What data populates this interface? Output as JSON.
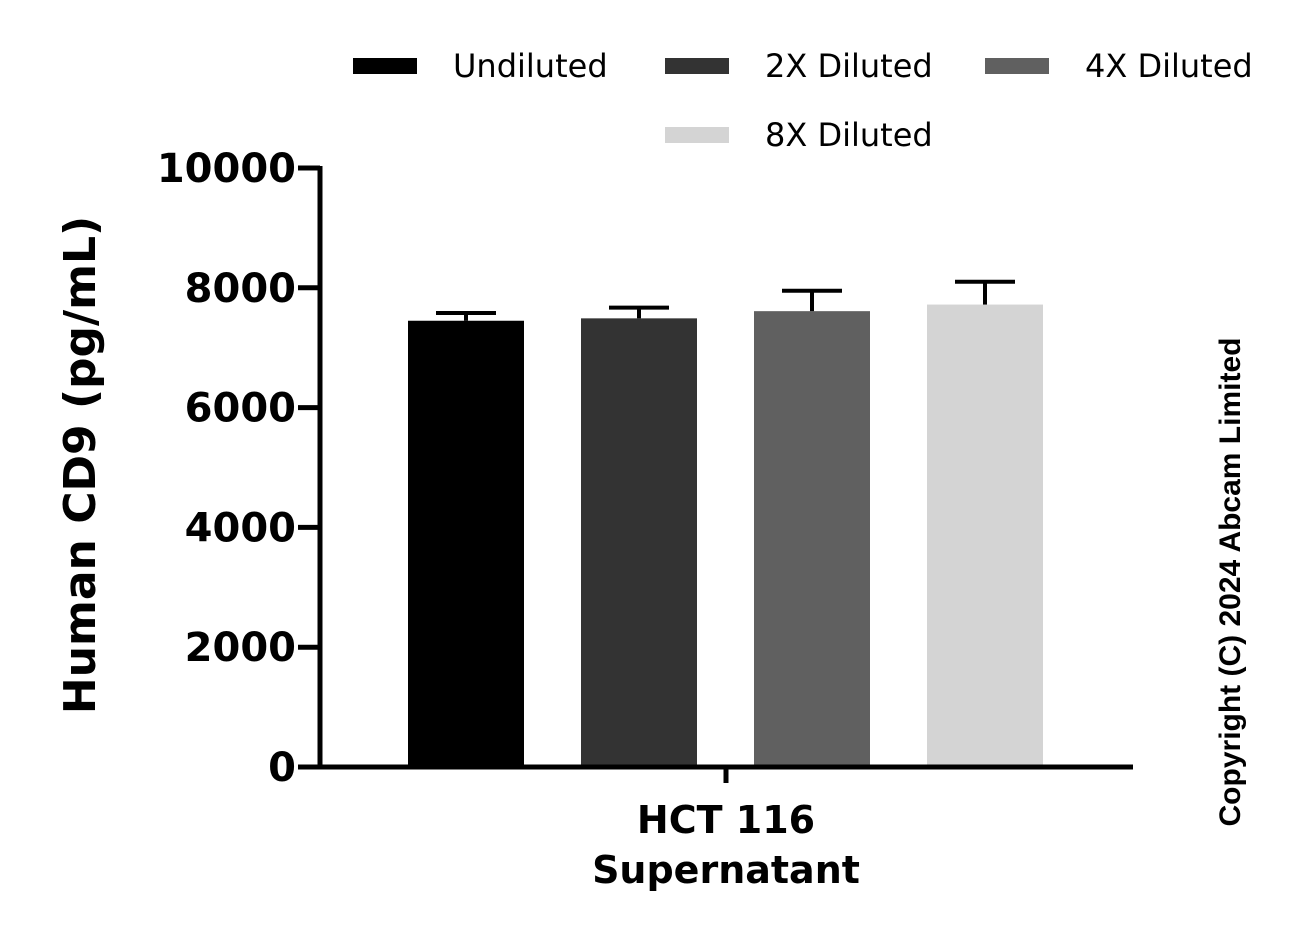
{
  "chart_data": {
    "type": "bar",
    "categories": [
      "HCT 116 Supernatant"
    ],
    "category_label_lines": [
      "HCT 116",
      "Supernatant"
    ],
    "ylabel": "Human CD9 (pg/mL)",
    "xlabel": "",
    "ylim": [
      0,
      10000
    ],
    "yticks": [
      0,
      2000,
      4000,
      6000,
      8000,
      10000
    ],
    "ytick_labels": [
      "0",
      "2000",
      "4000",
      "6000",
      "8000",
      "10000"
    ],
    "grid": false,
    "legend_position": "top",
    "series": [
      {
        "name": "Undiluted",
        "values": [
          7450
        ],
        "error": [
          130
        ],
        "color": "#000000"
      },
      {
        "name": "2X Diluted",
        "values": [
          7490
        ],
        "error": [
          180
        ],
        "color": "#333333"
      },
      {
        "name": "4X Diluted",
        "values": [
          7610
        ],
        "error": [
          340
        ],
        "color": "#606060"
      },
      {
        "name": "8X Diluted",
        "values": [
          7720
        ],
        "error": [
          380
        ],
        "color": "#d4d4d4"
      }
    ]
  },
  "copyright": "Copyright (C) 2024 Abcam Limited"
}
